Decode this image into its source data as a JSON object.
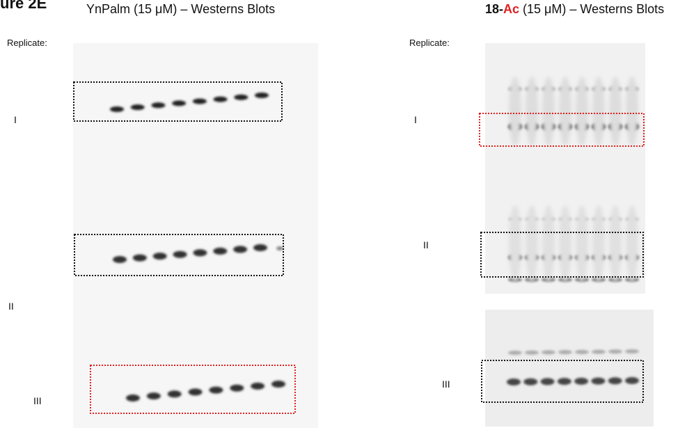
{
  "figure_label": "ure 2E",
  "panels": [
    {
      "title": "YnPalm (15 μM) – Westerns Blots",
      "replicate_label": "Replicate:",
      "replicates": [
        "I",
        "II",
        "III"
      ]
    },
    {
      "title_parts": [
        "18-",
        "Ac",
        " (15 μM) – Westerns Blots"
      ],
      "replicate_label": "Replicate:",
      "replicates": [
        "I",
        "II",
        "III"
      ]
    }
  ]
}
